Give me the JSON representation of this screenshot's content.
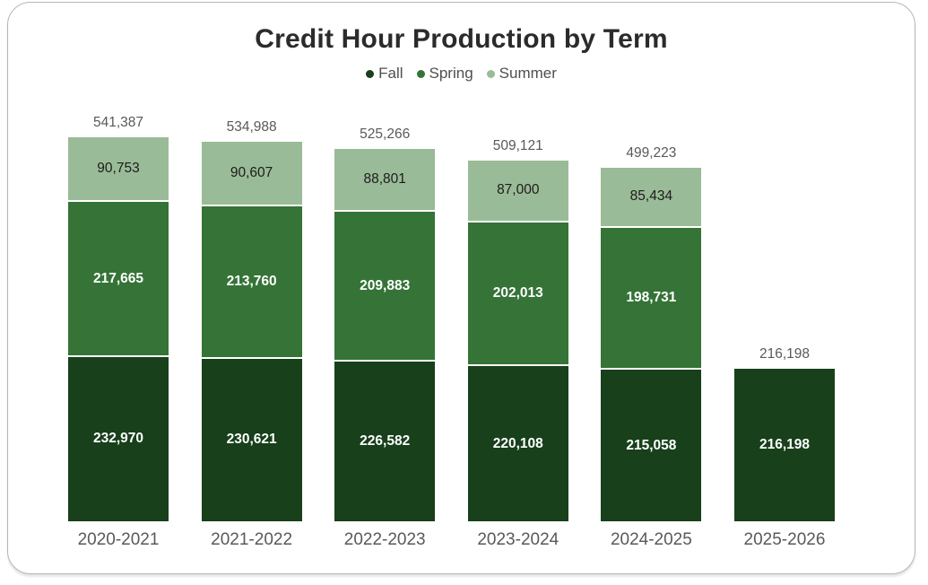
{
  "title": "Credit Hour Production by Term",
  "legend": {
    "position": "top",
    "items": [
      {
        "label": "Fall",
        "color": "#17401b"
      },
      {
        "label": "Spring",
        "color": "#357337"
      },
      {
        "label": "Summer",
        "color": "#9abb97"
      }
    ]
  },
  "chart_data": {
    "type": "bar",
    "stacked": true,
    "title": "Credit Hour Production by Term",
    "xlabel": "",
    "ylabel": "",
    "grid": false,
    "legend_position": "top",
    "ylim": [
      0,
      541387
    ],
    "categories": [
      "2020-2021",
      "2021-2022",
      "2022-2023",
      "2023-2024",
      "2024-2025",
      "2025-2026"
    ],
    "series": [
      {
        "name": "Fall",
        "color": "#17401b",
        "label_color": "#ffffff",
        "values": [
          232970,
          230621,
          226582,
          220108,
          215058,
          216198
        ],
        "labels": [
          "232,970",
          "230,621",
          "226,582",
          "220,108",
          "215,058",
          "216,198"
        ]
      },
      {
        "name": "Spring",
        "color": "#357337",
        "label_color": "#ffffff",
        "values": [
          217665,
          213760,
          209883,
          202013,
          198731,
          0
        ],
        "labels": [
          "217,665",
          "213,760",
          "209,883",
          "202,013",
          "198,731",
          ""
        ]
      },
      {
        "name": "Summer",
        "color": "#9abb97",
        "label_color": "#1c1c1c",
        "values": [
          90753,
          90607,
          88801,
          87000,
          85434,
          0
        ],
        "labels": [
          "90,753",
          "90,607",
          "88,801",
          "87,000",
          "85,434",
          ""
        ]
      }
    ],
    "totals": [
      541387,
      534988,
      525266,
      509121,
      499223,
      216198
    ],
    "total_labels": [
      "541,387",
      "534,988",
      "525,266",
      "509,121",
      "499,223",
      "216,198"
    ]
  }
}
